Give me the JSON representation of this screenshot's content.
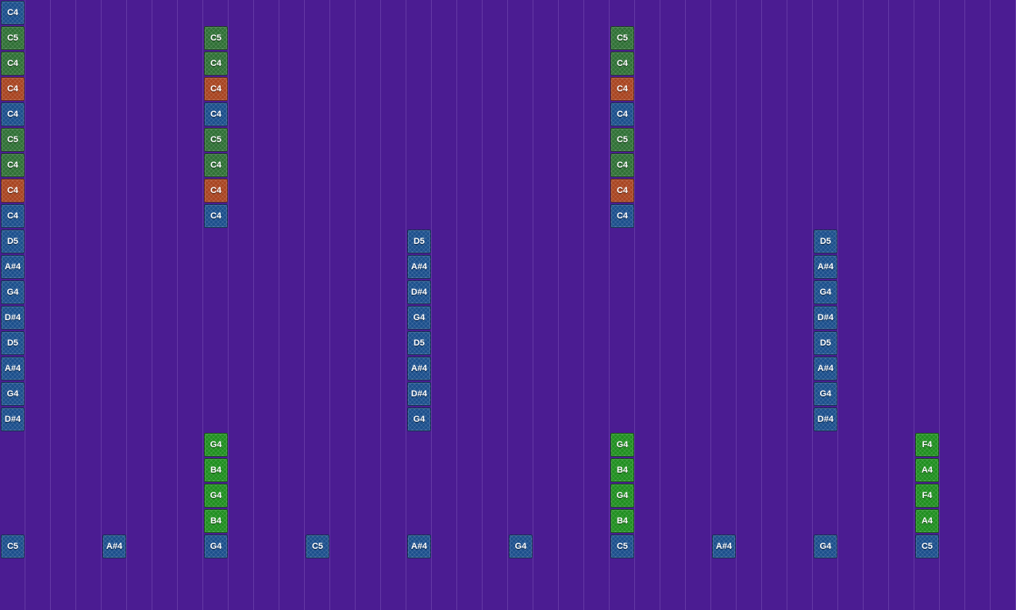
{
  "palette": {
    "background": "#4b1c92",
    "blue": "#1b4f8c",
    "green": "#2f7035",
    "orange": "#a84420",
    "lime": "#1f8f1f"
  },
  "notes": [
    {
      "col": 0,
      "row": 0,
      "label": "C4",
      "color": "blue"
    },
    {
      "col": 0,
      "row": 1,
      "label": "C5",
      "color": "green"
    },
    {
      "col": 0,
      "row": 2,
      "label": "C4",
      "color": "green"
    },
    {
      "col": 0,
      "row": 3,
      "label": "C4",
      "color": "orange"
    },
    {
      "col": 0,
      "row": 4,
      "label": "C4",
      "color": "blue"
    },
    {
      "col": 0,
      "row": 5,
      "label": "C5",
      "color": "green"
    },
    {
      "col": 0,
      "row": 6,
      "label": "C4",
      "color": "green"
    },
    {
      "col": 0,
      "row": 7,
      "label": "C4",
      "color": "orange"
    },
    {
      "col": 0,
      "row": 8,
      "label": "C4",
      "color": "blue"
    },
    {
      "col": 0,
      "row": 9,
      "label": "D5",
      "color": "blue"
    },
    {
      "col": 0,
      "row": 10,
      "label": "A#4",
      "color": "blue"
    },
    {
      "col": 0,
      "row": 11,
      "label": "G4",
      "color": "blue"
    },
    {
      "col": 0,
      "row": 12,
      "label": "D#4",
      "color": "blue"
    },
    {
      "col": 0,
      "row": 13,
      "label": "D5",
      "color": "blue"
    },
    {
      "col": 0,
      "row": 14,
      "label": "A#4",
      "color": "blue"
    },
    {
      "col": 0,
      "row": 15,
      "label": "G4",
      "color": "blue"
    },
    {
      "col": 0,
      "row": 16,
      "label": "D#4",
      "color": "blue"
    },
    {
      "col": 0,
      "row": 21,
      "label": "C5",
      "color": "blue"
    },
    {
      "col": 4,
      "row": 21,
      "label": "A#4",
      "color": "blue"
    },
    {
      "col": 8,
      "row": 1,
      "label": "C5",
      "color": "green"
    },
    {
      "col": 8,
      "row": 2,
      "label": "C4",
      "color": "green"
    },
    {
      "col": 8,
      "row": 3,
      "label": "C4",
      "color": "orange"
    },
    {
      "col": 8,
      "row": 4,
      "label": "C4",
      "color": "blue"
    },
    {
      "col": 8,
      "row": 5,
      "label": "C5",
      "color": "green"
    },
    {
      "col": 8,
      "row": 6,
      "label": "C4",
      "color": "green"
    },
    {
      "col": 8,
      "row": 7,
      "label": "C4",
      "color": "orange"
    },
    {
      "col": 8,
      "row": 8,
      "label": "C4",
      "color": "blue"
    },
    {
      "col": 8,
      "row": 17,
      "label": "G4",
      "color": "lime"
    },
    {
      "col": 8,
      "row": 18,
      "label": "B4",
      "color": "lime"
    },
    {
      "col": 8,
      "row": 19,
      "label": "G4",
      "color": "lime"
    },
    {
      "col": 8,
      "row": 20,
      "label": "B4",
      "color": "lime"
    },
    {
      "col": 8,
      "row": 21,
      "label": "G4",
      "color": "blue"
    },
    {
      "col": 12,
      "row": 21,
      "label": "C5",
      "color": "blue"
    },
    {
      "col": 16,
      "row": 9,
      "label": "D5",
      "color": "blue"
    },
    {
      "col": 16,
      "row": 10,
      "label": "A#4",
      "color": "blue"
    },
    {
      "col": 16,
      "row": 11,
      "label": "D#4",
      "color": "blue"
    },
    {
      "col": 16,
      "row": 12,
      "label": "G4",
      "color": "blue"
    },
    {
      "col": 16,
      "row": 13,
      "label": "D5",
      "color": "blue"
    },
    {
      "col": 16,
      "row": 14,
      "label": "A#4",
      "color": "blue"
    },
    {
      "col": 16,
      "row": 15,
      "label": "D#4",
      "color": "blue"
    },
    {
      "col": 16,
      "row": 16,
      "label": "G4",
      "color": "blue"
    },
    {
      "col": 16,
      "row": 21,
      "label": "A#4",
      "color": "blue"
    },
    {
      "col": 20,
      "row": 21,
      "label": "G4",
      "color": "blue"
    },
    {
      "col": 24,
      "row": 1,
      "label": "C5",
      "color": "green"
    },
    {
      "col": 24,
      "row": 2,
      "label": "C4",
      "color": "green"
    },
    {
      "col": 24,
      "row": 3,
      "label": "C4",
      "color": "orange"
    },
    {
      "col": 24,
      "row": 4,
      "label": "C4",
      "color": "blue"
    },
    {
      "col": 24,
      "row": 5,
      "label": "C5",
      "color": "green"
    },
    {
      "col": 24,
      "row": 6,
      "label": "C4",
      "color": "green"
    },
    {
      "col": 24,
      "row": 7,
      "label": "C4",
      "color": "orange"
    },
    {
      "col": 24,
      "row": 8,
      "label": "C4",
      "color": "blue"
    },
    {
      "col": 24,
      "row": 17,
      "label": "G4",
      "color": "lime"
    },
    {
      "col": 24,
      "row": 18,
      "label": "B4",
      "color": "lime"
    },
    {
      "col": 24,
      "row": 19,
      "label": "G4",
      "color": "lime"
    },
    {
      "col": 24,
      "row": 20,
      "label": "B4",
      "color": "lime"
    },
    {
      "col": 24,
      "row": 21,
      "label": "C5",
      "color": "blue"
    },
    {
      "col": 28,
      "row": 21,
      "label": "A#4",
      "color": "blue"
    },
    {
      "col": 32,
      "row": 9,
      "label": "D5",
      "color": "blue"
    },
    {
      "col": 32,
      "row": 10,
      "label": "A#4",
      "color": "blue"
    },
    {
      "col": 32,
      "row": 11,
      "label": "G4",
      "color": "blue"
    },
    {
      "col": 32,
      "row": 12,
      "label": "D#4",
      "color": "blue"
    },
    {
      "col": 32,
      "row": 13,
      "label": "D5",
      "color": "blue"
    },
    {
      "col": 32,
      "row": 14,
      "label": "A#4",
      "color": "blue"
    },
    {
      "col": 32,
      "row": 15,
      "label": "G4",
      "color": "blue"
    },
    {
      "col": 32,
      "row": 16,
      "label": "D#4",
      "color": "blue"
    },
    {
      "col": 32,
      "row": 21,
      "label": "G4",
      "color": "blue"
    },
    {
      "col": 36,
      "row": 17,
      "label": "F4",
      "color": "lime"
    },
    {
      "col": 36,
      "row": 18,
      "label": "A4",
      "color": "lime"
    },
    {
      "col": 36,
      "row": 19,
      "label": "F4",
      "color": "lime"
    },
    {
      "col": 36,
      "row": 20,
      "label": "A4",
      "color": "lime"
    },
    {
      "col": 36,
      "row": 21,
      "label": "C5",
      "color": "blue"
    }
  ]
}
